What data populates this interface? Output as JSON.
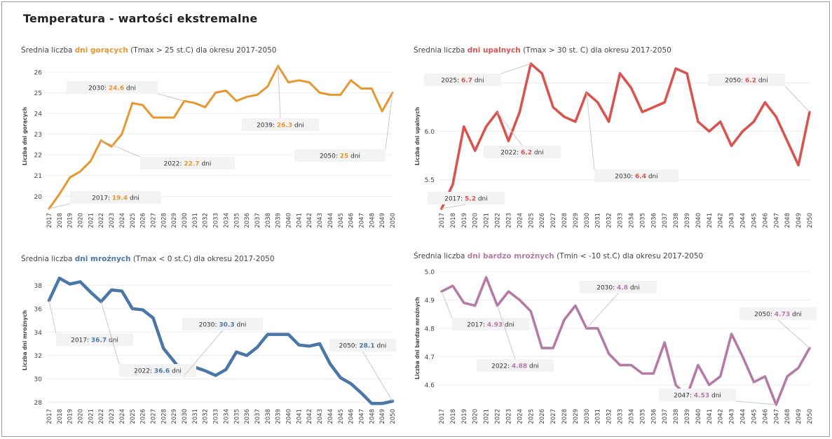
{
  "page": {
    "title": "Temperatura - wartości ekstremalne"
  },
  "years": [
    "2017",
    "2018",
    "2019",
    "2020",
    "2021",
    "2022",
    "2023",
    "2024",
    "2025",
    "2026",
    "2027",
    "2028",
    "2029",
    "2030",
    "2031",
    "2032",
    "2033",
    "2034",
    "2035",
    "2036",
    "2037",
    "2038",
    "2039",
    "2040",
    "2041",
    "2042",
    "2043",
    "2044",
    "2045",
    "2046",
    "2047",
    "2048",
    "2049",
    "2050"
  ],
  "chart_data": [
    {
      "type": "line",
      "title_pre": "Średnia liczba ",
      "title_hl": "dni gorących",
      "title_post": " (Tmax > 25 st.C) dla okresu 2017-2050",
      "ylabel": "Liczba dni gorących",
      "ylim": [
        19.4,
        26.4
      ],
      "yticks": [
        "20",
        "21",
        "22",
        "23",
        "24",
        "25",
        "26"
      ],
      "color": "#E8962E",
      "series": [
        {
          "values": [
            19.4,
            20.1,
            20.9,
            21.2,
            21.7,
            22.7,
            22.4,
            23.0,
            24.5,
            24.4,
            23.8,
            23.8,
            23.8,
            24.6,
            24.5,
            24.3,
            25.0,
            25.1,
            24.6,
            24.8,
            24.9,
            25.3,
            26.3,
            25.5,
            25.6,
            25.5,
            25.0,
            24.9,
            24.9,
            25.6,
            25.2,
            25.2,
            24.1,
            25.0
          ]
        }
      ],
      "annotations": [
        {
          "label": "2017: ",
          "value": "19.4",
          "unit": " dni",
          "year": "2017"
        },
        {
          "label": "2022: ",
          "value": "22.7",
          "unit": " dni",
          "year": "2022"
        },
        {
          "label": "2030: ",
          "value": "24.6",
          "unit": " dni",
          "year": "2030"
        },
        {
          "label": "2039: ",
          "value": "26.3",
          "unit": " dni",
          "year": "2039"
        },
        {
          "label": "2050: ",
          "value": "25",
          "unit": " dni",
          "year": "2050"
        }
      ]
    },
    {
      "type": "line",
      "title_pre": "Średnia liczba ",
      "title_hl": "dni upalnych",
      "title_post": " (Tmax > 30 st. C) dla okresu 2017-2050",
      "ylabel": "Liczba dni upalnych",
      "ylim": [
        5.2,
        6.7
      ],
      "yticks": [
        "5.5",
        "6.0",
        "6.5"
      ],
      "color": "#D9534F",
      "series": [
        {
          "values": [
            5.2,
            5.45,
            6.05,
            5.8,
            6.05,
            6.2,
            5.9,
            6.2,
            6.7,
            6.6,
            6.25,
            6.15,
            6.1,
            6.4,
            6.3,
            6.1,
            6.6,
            6.45,
            6.2,
            6.25,
            6.3,
            6.65,
            6.6,
            6.1,
            6.0,
            6.1,
            5.85,
            6.0,
            6.1,
            6.3,
            6.15,
            5.9,
            5.65,
            6.2
          ]
        }
      ],
      "annotations": [
        {
          "label": "2017: ",
          "value": "5.2",
          "unit": " dni",
          "year": "2017"
        },
        {
          "label": "2022: ",
          "value": "6.2",
          "unit": " dni",
          "year": "2022"
        },
        {
          "label": "2025: ",
          "value": "6.7",
          "unit": " dni",
          "year": "2025"
        },
        {
          "label": "2030: ",
          "value": "6.4",
          "unit": " dni",
          "year": "2030"
        },
        {
          "label": "2050: ",
          "value": "6.2",
          "unit": " dni",
          "year": "2050"
        }
      ]
    },
    {
      "type": "line",
      "title_pre": "Średnia liczba ",
      "title_hl": "dni mroźnych",
      "title_post": " (Tmax < 0 st.C) dla okresu 2017-2050",
      "ylabel": "Liczba dni mroźnych",
      "ylim": [
        27.8,
        38.8
      ],
      "yticks": [
        "28",
        "30",
        "32",
        "34",
        "36",
        "38"
      ],
      "color": "#4A76A8",
      "series": [
        {
          "values": [
            36.7,
            38.6,
            38.1,
            38.3,
            37.4,
            36.6,
            37.6,
            37.5,
            36.0,
            35.9,
            35.2,
            32.6,
            31.5,
            30.3,
            31.0,
            30.7,
            30.3,
            30.8,
            32.3,
            32.0,
            32.7,
            33.8,
            33.8,
            33.8,
            32.9,
            32.8,
            33.0,
            31.3,
            30.1,
            29.6,
            28.8,
            27.9,
            27.9,
            28.1
          ]
        }
      ],
      "annotations": [
        {
          "label": "2017: ",
          "value": "36.7",
          "unit": " dni",
          "year": "2017"
        },
        {
          "label": "2022: ",
          "value": "36.6",
          "unit": " dni",
          "year": "2022"
        },
        {
          "label": "2030: ",
          "value": "30.3",
          "unit": " dni",
          "year": "2030"
        },
        {
          "label": "2050: ",
          "value": "28.1",
          "unit": " dni",
          "year": "2050"
        }
      ]
    },
    {
      "type": "line",
      "title_pre": "Średnia liczba ",
      "title_hl": "dni bardzo mroźnych",
      "title_post": " (Tmin < -10 st.C) dla okresu 2017-2050",
      "ylabel": "Liczba dni bardzo mroźnych",
      "ylim": [
        4.53,
        5.0
      ],
      "yticks": [
        "4.6",
        "4.7",
        "4.8",
        "4.9",
        "5.0"
      ],
      "color": "#B57BA6",
      "series": [
        {
          "values": [
            4.93,
            4.95,
            4.89,
            4.88,
            4.98,
            4.88,
            4.93,
            4.9,
            4.86,
            4.73,
            4.73,
            4.83,
            4.88,
            4.8,
            4.8,
            4.71,
            4.67,
            4.67,
            4.64,
            4.64,
            4.75,
            4.6,
            4.56,
            4.67,
            4.6,
            4.63,
            4.78,
            4.7,
            4.61,
            4.63,
            4.53,
            4.63,
            4.66,
            4.73
          ]
        }
      ],
      "annotations": [
        {
          "label": "2017: ",
          "value": "4.93",
          "unit": " dni",
          "year": "2017"
        },
        {
          "label": "2022: ",
          "value": "4.88",
          "unit": " dni",
          "year": "2022"
        },
        {
          "label": "2030: ",
          "value": "4.8",
          "unit": " dni",
          "year": "2030"
        },
        {
          "label": "2047: ",
          "value": "4.53",
          "unit": " dni",
          "year": "2047"
        },
        {
          "label": "2050: ",
          "value": "4.73",
          "unit": " dni",
          "year": "2050"
        }
      ]
    }
  ]
}
